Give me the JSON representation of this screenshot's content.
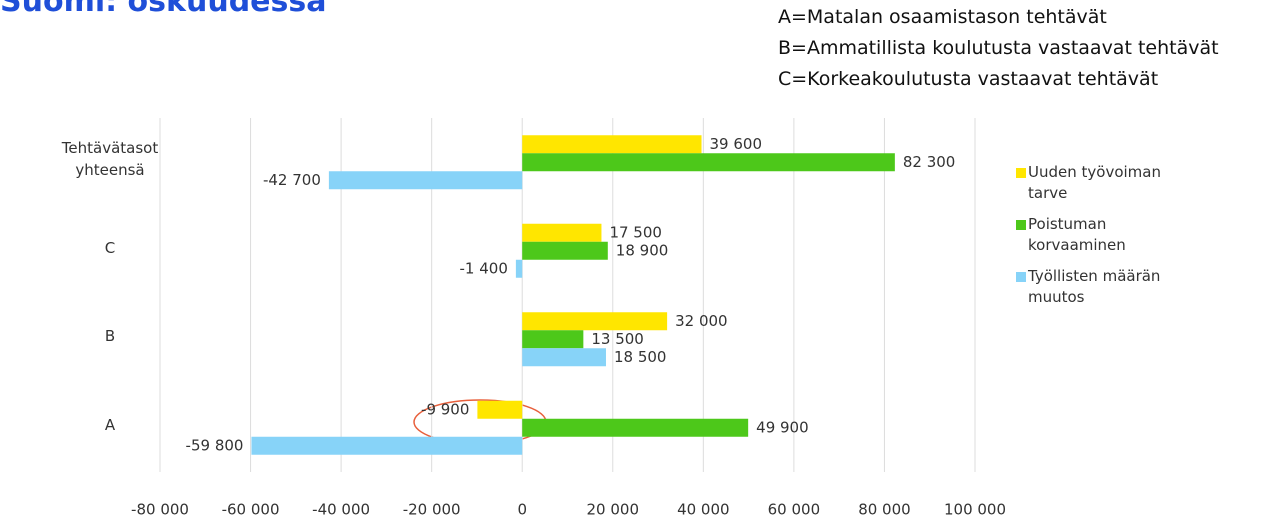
{
  "chart_data": {
    "type": "bar",
    "orientation": "horizontal",
    "title": "Suomi: oskuudessa",
    "annotations": [
      "A=Matalan osaamistason tehtävät",
      "B=Ammatillista koulutusta vastaavat tehtävät",
      "C=Korkeakoulutusta vastaavat tehtävät"
    ],
    "categories": [
      "Tehtävätasot yhteensä",
      "C",
      "B",
      "A"
    ],
    "series": [
      {
        "name": "Uuden työvoiman tarve",
        "color": "#ffe600",
        "values": [
          39600,
          17500,
          32000,
          -9900
        ],
        "value_labels": [
          "39 600",
          "17 500",
          "32 000",
          "-9 900"
        ]
      },
      {
        "name": "Poistuman korvaaminen",
        "color": "#4dc81a",
        "values": [
          82300,
          18900,
          13500,
          49900
        ],
        "value_labels": [
          "82 300",
          "18 900",
          "13 500",
          "49 900"
        ]
      },
      {
        "name": "Työllisten määrän muutos",
        "color": "#87d3f8",
        "values": [
          -42700,
          -1400,
          18500,
          -59800
        ],
        "value_labels": [
          "-42 700",
          "-1 400",
          "18 500",
          "-59 800"
        ]
      }
    ],
    "xlim": [
      -80000,
      100000
    ],
    "xticks": [
      {
        "value": -80000,
        "label": "-80 000"
      },
      {
        "value": -60000,
        "label": "-60 000"
      },
      {
        "value": -40000,
        "label": "-40 000"
      },
      {
        "value": -20000,
        "label": "-20 000"
      },
      0,
      {
        "value": 20000,
        "label": "20 000"
      },
      {
        "value": 40000,
        "label": "40 000"
      },
      {
        "value": 60000,
        "label": "60 000"
      },
      {
        "value": 80000,
        "label": "80 000"
      },
      {
        "value": 100000,
        "label": "100 000"
      }
    ],
    "grid": true,
    "legend": "right"
  }
}
